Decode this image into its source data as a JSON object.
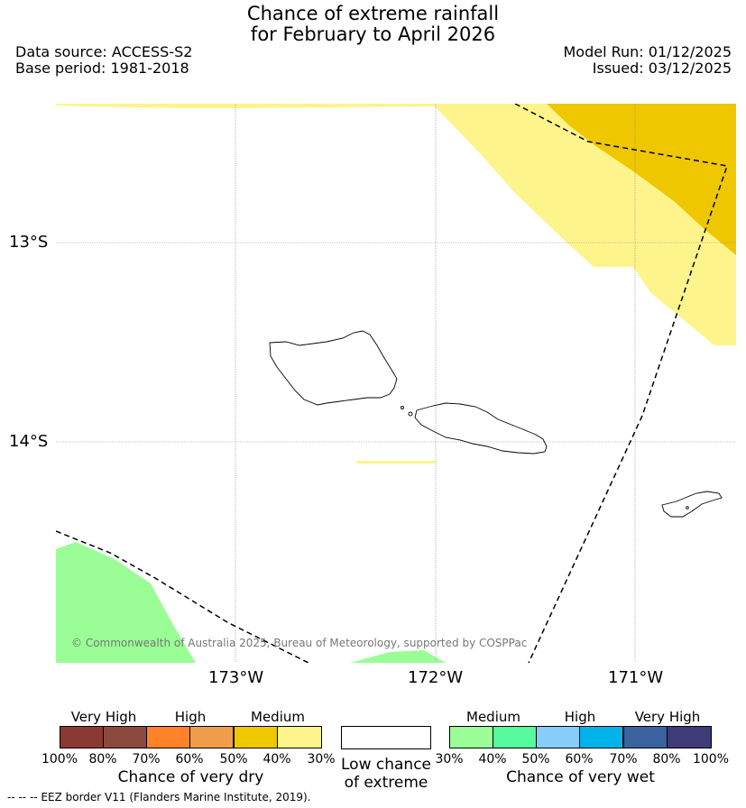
{
  "title": {
    "line1": "Chance of extreme rainfall",
    "line2": "for February to April 2026"
  },
  "meta": {
    "data_source": "Data source: ACCESS-S2",
    "base_period": "Base period: 1981-2018",
    "model_run": "Model Run: 01/12/2025",
    "issued": "Issued: 03/12/2025"
  },
  "axes": {
    "lat_labels": [
      "13°S",
      "14°S"
    ],
    "lon_labels": [
      "173°W",
      "172°W",
      "171°W"
    ]
  },
  "copyright": "© Commonwealth of Australia 2025, Bureau of Meteorology, supported by COSPPac",
  "colors": {
    "dry": [
      "#8B3A33",
      "#8B4A3D",
      "#FF8228",
      "#EF9D4A",
      "#EEC700",
      "#FDF48B"
    ],
    "wet": [
      "#9AFD96",
      "#55FB9C",
      "#86CDF9",
      "#00B3EA",
      "#3C62A0",
      "#3F3A78"
    ],
    "eez_line": "#000000",
    "coast_line": "#000000"
  },
  "legend": {
    "dry": {
      "headers": [
        "Very High",
        "High",
        "Medium"
      ],
      "ticks": [
        "100%",
        "80%",
        "70%",
        "60%",
        "50%",
        "40%",
        "30%"
      ],
      "title": "Chance of very dry"
    },
    "neutral": {
      "line1": "Low chance",
      "line2": "of extreme"
    },
    "wet": {
      "headers": [
        "Medium",
        "High",
        "Very High"
      ],
      "ticks": [
        "30%",
        "40%",
        "50%",
        "60%",
        "70%",
        "80%",
        "100%"
      ],
      "title": "Chance of very wet"
    }
  },
  "footer": "-- -- -- EEZ border V11 (Flanders Marine Institute, 2019)."
}
